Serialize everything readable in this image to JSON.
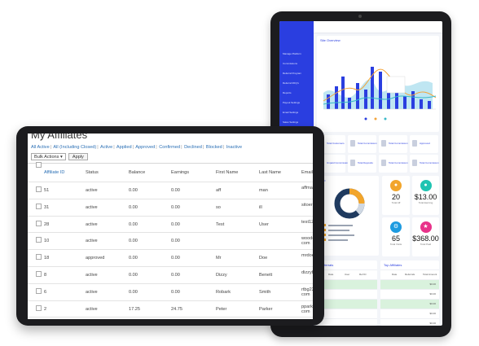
{
  "back_dashboard": {
    "sidebar_items": [
      "Manage Platform",
      "Commissions",
      "Referral Program",
      "Referral RFQ's",
      "Reports",
      "Payout Settings",
      "Email Settings",
      "Sales Settings",
      "Referral Report"
    ],
    "overview_title": "Site Overview",
    "chart_colors": {
      "bar": "#2a3ee0",
      "line_orange": "#f3a43a",
      "line_teal": "#39b9c9",
      "area": "#bfe6f2"
    },
    "stat_labels": [
      "Total Customers",
      "Total Commission",
      "Total Commission",
      "Approved",
      "Unpaid Commission",
      "Total Deposits",
      "Total Commission",
      "Total Commission"
    ],
    "affiliates_heading": "Top",
    "donut_colors": [
      "#1f3a5f",
      "#f2a52b",
      "#cfd8e3"
    ],
    "tiles": [
      {
        "value": "20",
        "caption": "Total Aff",
        "color": "#f2a52b",
        "icon": "bag-icon"
      },
      {
        "value": "$13.00",
        "caption": "Total Earning",
        "color": "#20c4b2",
        "icon": "drop-icon"
      },
      {
        "value": "65",
        "caption": "Total Visits",
        "color": "#1e9be0",
        "icon": "gear-icon"
      },
      {
        "value": "$368.00",
        "caption": "Total Paid",
        "color": "#e8328a",
        "icon": "star-icon"
      }
    ],
    "table_left_title": "Referrals",
    "table_right_title": "Top Affiliates",
    "table_columns": [
      "Date",
      "User",
      "Ref ID"
    ],
    "table_right_columns": [
      "Date",
      "Referrals",
      "Total Amount"
    ],
    "table_amounts": [
      "$0.00",
      "$0.00",
      "$0.00",
      "$0.00",
      "$0.00",
      "$0.00",
      "$0.00"
    ]
  },
  "front": {
    "page_title": "My Affiliates",
    "filters": [
      "All Active",
      "All (Including Closed)",
      "Active",
      "Applied",
      "Approved",
      "Confirmed",
      "Declined",
      "Blocked",
      "Inactive"
    ],
    "bulk_actions_label": "Bulk Actions",
    "apply_label": "Apply",
    "columns": [
      "Affiliate ID",
      "Status",
      "Balance",
      "Earnings",
      "First Name",
      "Last Name",
      "Email"
    ],
    "rows": [
      {
        "id": "51",
        "status": "active",
        "balance": "0.00",
        "earnings": "0.00",
        "first": "aff",
        "last": "man",
        "email": "affma"
      },
      {
        "id": "31",
        "status": "active",
        "balance": "0.00",
        "earnings": "0.00",
        "first": "so",
        "last": "ill",
        "email": "sitoer"
      },
      {
        "id": "28",
        "status": "active",
        "balance": "0.00",
        "earnings": "0.00",
        "first": "Test",
        "last": "User",
        "email": "test12"
      },
      {
        "id": "10",
        "status": "active",
        "balance": "0.00",
        "earnings": "0.00",
        "first": "",
        "last": "",
        "email": "woode\ncom"
      },
      {
        "id": "18",
        "status": "approved",
        "balance": "0.00",
        "earnings": "0.00",
        "first": "Mr",
        "last": "Doe",
        "email": "mrdoe"
      },
      {
        "id": "8",
        "status": "active",
        "balance": "0.00",
        "earnings": "0.00",
        "first": "Dizzy",
        "last": "Benett",
        "email": "dizzyb"
      },
      {
        "id": "6",
        "status": "active",
        "balance": "0.00",
        "earnings": "0.00",
        "first": "Robark",
        "last": "Smith",
        "email": "rtbg22\ncom"
      },
      {
        "id": "2",
        "status": "active",
        "balance": "17.25",
        "earnings": "24.75",
        "first": "Peter",
        "last": "Parker",
        "email": "pparke\ncom"
      },
      {
        "id": "1",
        "status": "active",
        "balance": "27.58",
        "earnings": "27.00",
        "first": "John",
        "last": "Doe",
        "email": "john12"
      }
    ]
  }
}
